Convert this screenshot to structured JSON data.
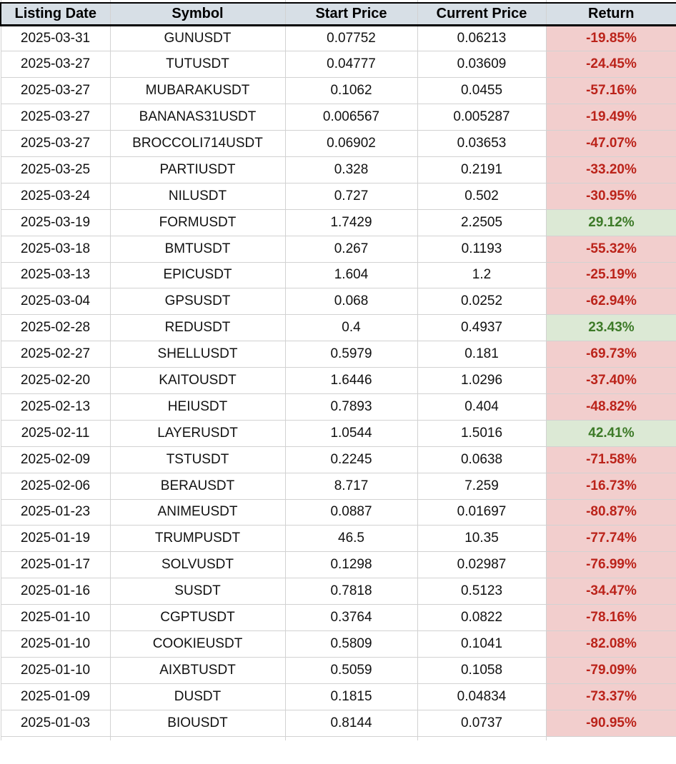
{
  "table": {
    "columns": [
      "Listing Date",
      "Symbol",
      "Start Price",
      "Current Price",
      "Return"
    ],
    "rows": [
      {
        "listing_date": "2025-03-31",
        "symbol": "GUNUSDT",
        "start_price": "0.07752",
        "current_price": "0.06213",
        "return": "-19.85%"
      },
      {
        "listing_date": "2025-03-27",
        "symbol": "TUTUSDT",
        "start_price": "0.04777",
        "current_price": "0.03609",
        "return": "-24.45%"
      },
      {
        "listing_date": "2025-03-27",
        "symbol": "MUBARAKUSDT",
        "start_price": "0.1062",
        "current_price": "0.0455",
        "return": "-57.16%"
      },
      {
        "listing_date": "2025-03-27",
        "symbol": "BANANAS31USDT",
        "start_price": "0.006567",
        "current_price": "0.005287",
        "return": "-19.49%"
      },
      {
        "listing_date": "2025-03-27",
        "symbol": "BROCCOLI714USDT",
        "start_price": "0.06902",
        "current_price": "0.03653",
        "return": "-47.07%"
      },
      {
        "listing_date": "2025-03-25",
        "symbol": "PARTIUSDT",
        "start_price": "0.328",
        "current_price": "0.2191",
        "return": "-33.20%"
      },
      {
        "listing_date": "2025-03-24",
        "symbol": "NILUSDT",
        "start_price": "0.727",
        "current_price": "0.502",
        "return": "-30.95%"
      },
      {
        "listing_date": "2025-03-19",
        "symbol": "FORMUSDT",
        "start_price": "1.7429",
        "current_price": "2.2505",
        "return": "29.12%"
      },
      {
        "listing_date": "2025-03-18",
        "symbol": "BMTUSDT",
        "start_price": "0.267",
        "current_price": "0.1193",
        "return": "-55.32%"
      },
      {
        "listing_date": "2025-03-13",
        "symbol": "EPICUSDT",
        "start_price": "1.604",
        "current_price": "1.2",
        "return": "-25.19%"
      },
      {
        "listing_date": "2025-03-04",
        "symbol": "GPSUSDT",
        "start_price": "0.068",
        "current_price": "0.0252",
        "return": "-62.94%"
      },
      {
        "listing_date": "2025-02-28",
        "symbol": "REDUSDT",
        "start_price": "0.4",
        "current_price": "0.4937",
        "return": "23.43%"
      },
      {
        "listing_date": "2025-02-27",
        "symbol": "SHELLUSDT",
        "start_price": "0.5979",
        "current_price": "0.181",
        "return": "-69.73%"
      },
      {
        "listing_date": "2025-02-20",
        "symbol": "KAITOUSDT",
        "start_price": "1.6446",
        "current_price": "1.0296",
        "return": "-37.40%"
      },
      {
        "listing_date": "2025-02-13",
        "symbol": "HEIUSDT",
        "start_price": "0.7893",
        "current_price": "0.404",
        "return": "-48.82%"
      },
      {
        "listing_date": "2025-02-11",
        "symbol": "LAYERUSDT",
        "start_price": "1.0544",
        "current_price": "1.5016",
        "return": "42.41%"
      },
      {
        "listing_date": "2025-02-09",
        "symbol": "TSTUSDT",
        "start_price": "0.2245",
        "current_price": "0.0638",
        "return": "-71.58%"
      },
      {
        "listing_date": "2025-02-06",
        "symbol": "BERAUSDT",
        "start_price": "8.717",
        "current_price": "7.259",
        "return": "-16.73%"
      },
      {
        "listing_date": "2025-01-23",
        "symbol": "ANIMEUSDT",
        "start_price": "0.0887",
        "current_price": "0.01697",
        "return": "-80.87%"
      },
      {
        "listing_date": "2025-01-19",
        "symbol": "TRUMPUSDT",
        "start_price": "46.5",
        "current_price": "10.35",
        "return": "-77.74%"
      },
      {
        "listing_date": "2025-01-17",
        "symbol": "SOLVUSDT",
        "start_price": "0.1298",
        "current_price": "0.02987",
        "return": "-76.99%"
      },
      {
        "listing_date": "2025-01-16",
        "symbol": "SUSDT",
        "start_price": "0.7818",
        "current_price": "0.5123",
        "return": "-34.47%"
      },
      {
        "listing_date": "2025-01-10",
        "symbol": "CGPTUSDT",
        "start_price": "0.3764",
        "current_price": "0.0822",
        "return": "-78.16%"
      },
      {
        "listing_date": "2025-01-10",
        "symbol": "COOKIEUSDT",
        "start_price": "0.5809",
        "current_price": "0.1041",
        "return": "-82.08%"
      },
      {
        "listing_date": "2025-01-10",
        "symbol": "AIXBTUSDT",
        "start_price": "0.5059",
        "current_price": "0.1058",
        "return": "-79.09%"
      },
      {
        "listing_date": "2025-01-09",
        "symbol": "DUSDT",
        "start_price": "0.1815",
        "current_price": "0.04834",
        "return": "-73.37%"
      },
      {
        "listing_date": "2025-01-03",
        "symbol": "BIOUSDT",
        "start_price": "0.8144",
        "current_price": "0.0737",
        "return": "-90.95%"
      }
    ]
  },
  "colors": {
    "header_bg": "#d7dfe6",
    "header_border": "#000000",
    "gridline": "#d2d2d2",
    "negative_bg": "#f2cecd",
    "negative_text": "#bb231a",
    "positive_bg": "#dce9d5",
    "positive_text": "#3d7a28"
  }
}
